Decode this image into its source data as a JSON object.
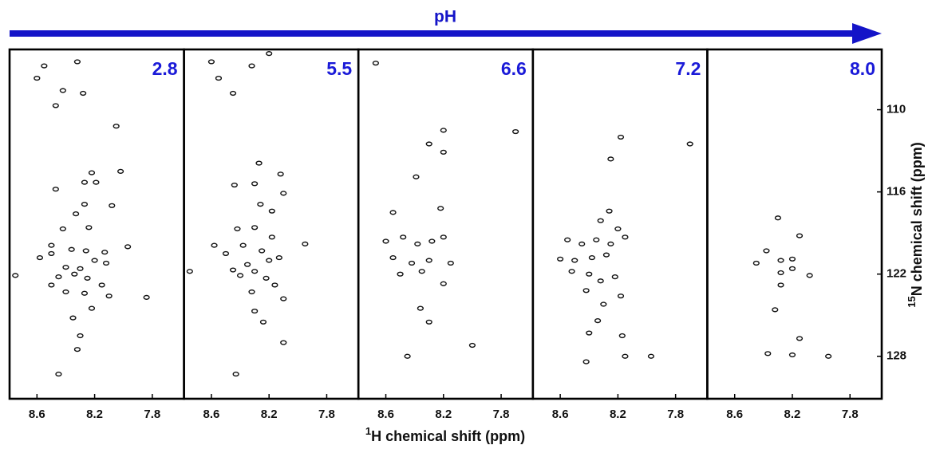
{
  "arrow_label": "pH",
  "x_label": {
    "sup": "1",
    "text": "H chemical shift (ppm)"
  },
  "y_label": {
    "sup": "15",
    "text": "N chemical shift (ppm)"
  },
  "chart_data": [
    {
      "type": "scatter",
      "title": "2.8",
      "color": "#111111",
      "x": [
        8.55,
        8.32,
        8.6,
        8.42,
        8.47,
        8.28,
        8.05,
        8.02,
        8.22,
        8.27,
        8.19,
        8.47,
        8.27,
        8.08,
        8.33,
        8.42,
        8.24,
        8.5,
        8.5,
        8.36,
        8.26,
        8.13,
        7.97,
        8.58,
        8.2,
        8.12,
        8.4,
        8.3,
        8.45,
        8.34,
        8.25,
        8.75,
        8.5,
        8.15,
        8.4,
        8.27,
        8.1,
        7.84,
        8.22,
        8.35,
        8.3,
        8.32,
        8.45
      ],
      "y": [
        106.8,
        106.5,
        107.7,
        108.6,
        109.7,
        108.8,
        111.2,
        114.5,
        114.6,
        115.3,
        115.3,
        115.8,
        116.9,
        117,
        117.6,
        118.7,
        118.6,
        119.9,
        120.5,
        120.2,
        120.3,
        120.4,
        120,
        120.8,
        121,
        121.2,
        121.5,
        121.6,
        122.2,
        122,
        122.3,
        122.1,
        122.8,
        122.8,
        123.3,
        123.4,
        123.6,
        123.7,
        124.5,
        125.2,
        126.5,
        127.5,
        129.3
      ],
      "xlim": [
        8.79,
        7.58
      ],
      "ylim": [
        131.1,
        105.6
      ],
      "xticks": [
        8.6,
        8.2,
        7.8
      ]
    },
    {
      "type": "scatter",
      "title": "5.5",
      "color": "#111111",
      "x": [
        8.6,
        8.45,
        8.55,
        8.32,
        8.2,
        8.27,
        8.12,
        8.44,
        8.3,
        8.1,
        8.26,
        8.18,
        8.42,
        8.3,
        8.18,
        8.58,
        8.38,
        8.25,
        8.5,
        8.13,
        8.35,
        8.2,
        8.45,
        8.3,
        8.75,
        8.4,
        8.22,
        8.16,
        8.32,
        8.1,
        8.3,
        8.24,
        8.1,
        7.95,
        8.43
      ],
      "y": [
        106.5,
        108.8,
        107.7,
        106.8,
        105.9,
        113.9,
        114.7,
        115.5,
        115.4,
        116.1,
        116.9,
        117.4,
        118.7,
        118.6,
        119.3,
        119.9,
        119.9,
        120.3,
        120.5,
        120.8,
        121.3,
        121,
        121.7,
        121.8,
        121.8,
        122.1,
        122.3,
        122.8,
        123.3,
        123.8,
        124.7,
        125.5,
        127,
        119.8,
        129.3
      ],
      "xlim": [
        8.79,
        7.58
      ],
      "ylim": [
        131.1,
        105.6
      ],
      "xticks": [
        8.6,
        8.2,
        7.8
      ]
    },
    {
      "type": "scatter",
      "title": "6.6",
      "color": "#111111",
      "x": [
        8.67,
        8.2,
        7.7,
        8.3,
        8.2,
        8.39,
        8.55,
        8.22,
        8.6,
        8.48,
        8.38,
        8.28,
        8.2,
        8.55,
        8.42,
        8.3,
        8.15,
        8.35,
        8.5,
        8.2,
        8.36,
        8.3,
        8.45,
        8.0
      ],
      "y": [
        106.6,
        111.5,
        111.6,
        112.5,
        113.1,
        114.9,
        117.5,
        117.2,
        119.6,
        119.3,
        119.8,
        119.6,
        119.3,
        120.8,
        121.2,
        121,
        121.2,
        121.8,
        122,
        122.7,
        124.5,
        125.5,
        128,
        127.2
      ],
      "xlim": [
        8.79,
        7.58
      ],
      "ylim": [
        131.1,
        105.6
      ],
      "xticks": [
        8.6,
        8.2,
        7.8
      ]
    },
    {
      "type": "scatter",
      "title": "7.2",
      "color": "#111111",
      "x": [
        8.25,
        8.18,
        7.7,
        8.26,
        8.32,
        8.2,
        8.55,
        8.45,
        8.35,
        8.25,
        8.15,
        8.6,
        8.5,
        8.38,
        8.28,
        8.52,
        8.4,
        8.32,
        8.22,
        8.42,
        8.18,
        8.3,
        8.34,
        8.4,
        8.17,
        8.42,
        8.15,
        7.97
      ],
      "y": [
        113.6,
        112,
        112.5,
        117.4,
        118.1,
        118.7,
        119.5,
        119.8,
        119.5,
        119.8,
        119.3,
        120.9,
        121,
        120.8,
        120.6,
        121.8,
        122,
        122.5,
        122.2,
        123.2,
        123.6,
        124.2,
        125.4,
        126.3,
        126.5,
        128.4,
        128,
        128
      ],
      "xlim": [
        8.79,
        7.58
      ],
      "ylim": [
        131.1,
        105.6
      ],
      "xticks": [
        8.6,
        8.2,
        7.8
      ]
    },
    {
      "type": "scatter",
      "title": "8.0",
      "color": "#111111",
      "x": [
        8.3,
        8.15,
        8.38,
        8.28,
        8.2,
        8.45,
        8.28,
        8.2,
        8.08,
        8.28,
        8.32,
        8.15,
        8.37,
        8.2,
        7.95
      ],
      "y": [
        117.9,
        119.2,
        120.3,
        121,
        120.9,
        121.2,
        121.9,
        121.6,
        122.1,
        122.8,
        124.6,
        126.7,
        127.8,
        127.9,
        128
      ],
      "xlim": [
        8.79,
        7.58
      ],
      "ylim": [
        131.1,
        105.6
      ],
      "xticks": [
        8.6,
        8.2,
        7.8
      ],
      "yticks": [
        110,
        116,
        122,
        128
      ]
    }
  ]
}
